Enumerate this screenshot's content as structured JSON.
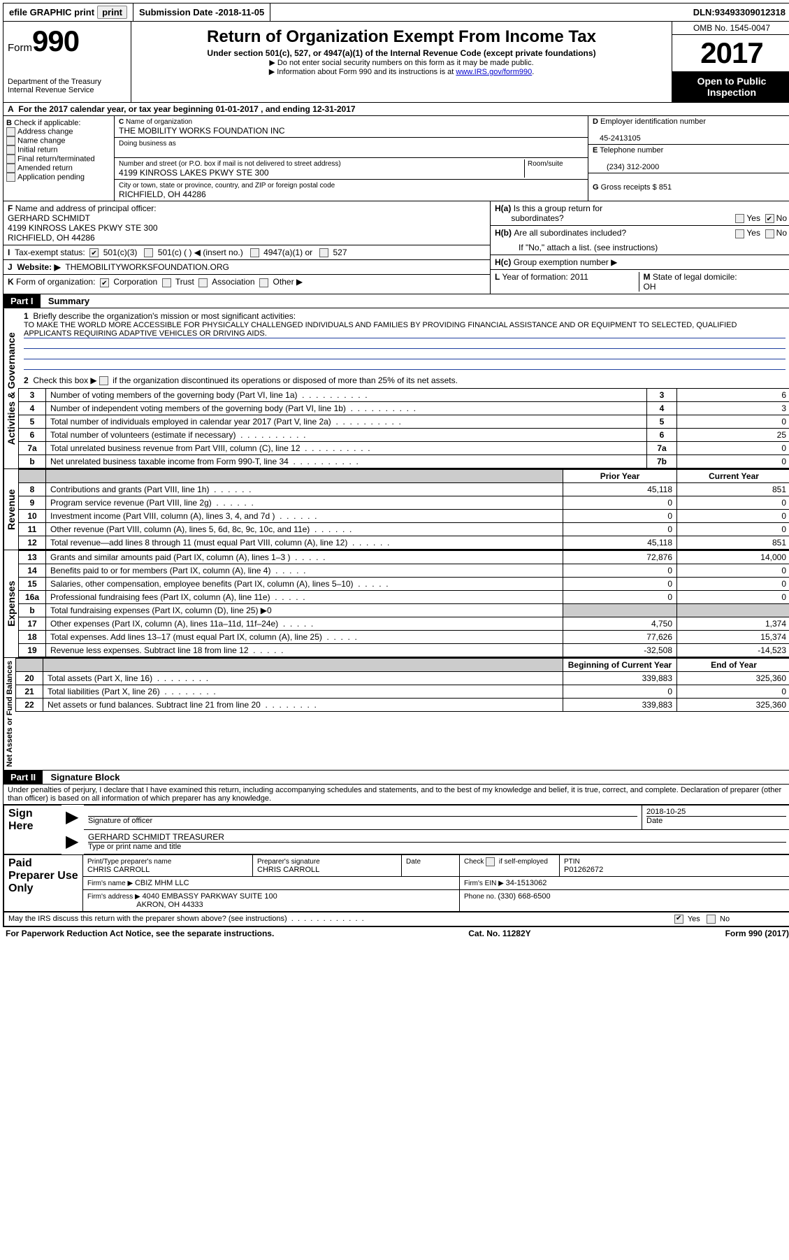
{
  "topbar": {
    "efile": "efile GRAPHIC print",
    "sub_label": "Submission Date - ",
    "sub_date": "2018-11-05",
    "dln_label": "DLN: ",
    "dln": "93493309012318"
  },
  "header": {
    "form_word": "Form",
    "form_num": "990",
    "dept1": "Department of the Treasury",
    "dept2": "Internal Revenue Service",
    "title": "Return of Organization Exempt From Income Tax",
    "subtitle": "Under section 501(c), 527, or 4947(a)(1) of the Internal Revenue Code (except private foundations)",
    "note1": "Do not enter social security numbers on this form as it may be made public.",
    "note2_a": "Information about Form 990 and its instructions is at ",
    "note2_link": "www.IRS.gov/form990",
    "omb": "OMB No. 1545-0047",
    "year": "2017",
    "open1": "Open to Public",
    "open2": "Inspection"
  },
  "line_a": "For the 2017 calendar year, or tax year beginning 01-01-2017   , and ending 12-31-2017",
  "col_b": {
    "title": "Check if applicable:",
    "items": [
      "Address change",
      "Name change",
      "Initial return",
      "Final return/terminated",
      "Amended return",
      "Application pending"
    ]
  },
  "col_c": {
    "c_label": "Name of organization",
    "c_val": "THE MOBILITY WORKS FOUNDATION INC",
    "dba_label": "Doing business as",
    "addr_label": "Number and street (or P.O. box if mail is not delivered to street address)",
    "room_label": "Room/suite",
    "addr_val": "4199 KINROSS LAKES PKWY STE 300",
    "city_label": "City or town, state or province, country, and ZIP or foreign postal code",
    "city_val": "RICHFIELD, OH  44286"
  },
  "col_d": {
    "d_label": "Employer identification number",
    "d_val": "45-2413105",
    "e_label": "Telephone number",
    "e_val": "(234) 312-2000",
    "g_label": "Gross receipts $ ",
    "g_val": "851"
  },
  "fg": {
    "f_label": "Name and address of principal officer:",
    "f_name": "GERHARD SCHMIDT",
    "f_addr1": "4199 KINROSS LAKES PKWY STE 300",
    "f_addr2": "RICHFIELD, OH  44286",
    "i_label": "Tax-exempt status:",
    "i_501c3": "501(c)(3)",
    "i_501c": "501(c) (   ) ◀ (insert no.)",
    "i_4947": "4947(a)(1) or",
    "i_527": "527",
    "j_label": "Website: ▶",
    "j_val": "THEMOBILITYWORKSFOUNDATION.ORG",
    "k_label": "Form of organization:",
    "k_corp": "Corporation",
    "k_trust": "Trust",
    "k_assoc": "Association",
    "k_other": "Other ▶"
  },
  "h": {
    "ha": "Is this a group return for",
    "ha2": "subordinates?",
    "hb": "Are all subordinates included?",
    "hnote": "If \"No,\" attach a list. (see instructions)",
    "hc": "Group exemption number ▶",
    "yes": "Yes",
    "no": "No",
    "l_label": "Year of formation: ",
    "l_val": "2011",
    "m_label": "State of legal domicile:",
    "m_val": "OH"
  },
  "part1": {
    "part": "Part I",
    "title": "Summary",
    "line1": "Briefly describe the organization's mission or most significant activities:",
    "mission": "TO MAKE THE WORLD MORE ACCESSIBLE FOR PHYSICALLY CHALLENGED INDIVIDUALS AND FAMILIES BY PROVIDING FINANCIAL ASSISTANCE AND OR EQUIPMENT TO SELECTED, QUALIFIED APPLICANTS REQUIRING ADAPTIVE VEHICLES OR DRIVING AIDS.",
    "line2": "Check this box ▶      if the organization discontinued its operations or disposed of more than 25% of its net assets.",
    "vlabel1": "Activities & Governance",
    "vlabel2": "Revenue",
    "vlabel3": "Expenses",
    "vlabel4": "Net Assets or Fund Balances",
    "rows_gov": [
      {
        "n": "3",
        "d": "Number of voting members of the governing body (Part VI, line 1a)",
        "b": "3",
        "v": "6"
      },
      {
        "n": "4",
        "d": "Number of independent voting members of the governing body (Part VI, line 1b)",
        "b": "4",
        "v": "3"
      },
      {
        "n": "5",
        "d": "Total number of individuals employed in calendar year 2017 (Part V, line 2a)",
        "b": "5",
        "v": "0"
      },
      {
        "n": "6",
        "d": "Total number of volunteers (estimate if necessary)",
        "b": "6",
        "v": "25"
      },
      {
        "n": "7a",
        "d": "Total unrelated business revenue from Part VIII, column (C), line 12",
        "b": "7a",
        "v": "0"
      },
      {
        "n": "b",
        "d": "Net unrelated business taxable income from Form 990-T, line 34",
        "b": "7b",
        "v": "0"
      }
    ],
    "prior": "Prior Year",
    "current": "Current Year",
    "rows_rev": [
      {
        "n": "8",
        "d": "Contributions and grants (Part VIII, line 1h)",
        "p": "45,118",
        "c": "851"
      },
      {
        "n": "9",
        "d": "Program service revenue (Part VIII, line 2g)",
        "p": "0",
        "c": "0"
      },
      {
        "n": "10",
        "d": "Investment income (Part VIII, column (A), lines 3, 4, and 7d )",
        "p": "0",
        "c": "0"
      },
      {
        "n": "11",
        "d": "Other revenue (Part VIII, column (A), lines 5, 6d, 8c, 9c, 10c, and 11e)",
        "p": "0",
        "c": "0"
      },
      {
        "n": "12",
        "d": "Total revenue—add lines 8 through 11 (must equal Part VIII, column (A), line 12)",
        "p": "45,118",
        "c": "851"
      }
    ],
    "rows_exp": [
      {
        "n": "13",
        "d": "Grants and similar amounts paid (Part IX, column (A), lines 1–3 )",
        "p": "72,876",
        "c": "14,000"
      },
      {
        "n": "14",
        "d": "Benefits paid to or for members (Part IX, column (A), line 4)",
        "p": "0",
        "c": "0"
      },
      {
        "n": "15",
        "d": "Salaries, other compensation, employee benefits (Part IX, column (A), lines 5–10)",
        "p": "0",
        "c": "0"
      },
      {
        "n": "16a",
        "d": "Professional fundraising fees (Part IX, column (A), line 11e)",
        "p": "0",
        "c": "0"
      },
      {
        "n": "b",
        "d": "Total fundraising expenses (Part IX, column (D), line 25) ▶0",
        "p": "",
        "c": "",
        "grey": true
      },
      {
        "n": "17",
        "d": "Other expenses (Part IX, column (A), lines 11a–11d, 11f–24e)",
        "p": "4,750",
        "c": "1,374"
      },
      {
        "n": "18",
        "d": "Total expenses. Add lines 13–17 (must equal Part IX, column (A), line 25)",
        "p": "77,626",
        "c": "15,374"
      },
      {
        "n": "19",
        "d": "Revenue less expenses. Subtract line 18 from line 12",
        "p": "-32,508",
        "c": "-14,523"
      }
    ],
    "begin": "Beginning of Current Year",
    "endyr": "End of Year",
    "rows_net": [
      {
        "n": "20",
        "d": "Total assets (Part X, line 16)",
        "p": "339,883",
        "c": "325,360"
      },
      {
        "n": "21",
        "d": "Total liabilities (Part X, line 26)",
        "p": "0",
        "c": "0"
      },
      {
        "n": "22",
        "d": "Net assets or fund balances. Subtract line 21 from line 20",
        "p": "339,883",
        "c": "325,360"
      }
    ]
  },
  "part2": {
    "part": "Part II",
    "title": "Signature Block",
    "decl": "Under penalties of perjury, I declare that I have examined this return, including accompanying schedules and statements, and to the best of my knowledge and belief, it is true, correct, and complete. Declaration of preparer (other than officer) is based on all information of which preparer has any knowledge.",
    "sign_here": "Sign Here",
    "sig_officer": "Signature of officer",
    "date": "Date",
    "sig_date": "2018-10-25",
    "name_title": "GERHARD SCHMIDT TREASURER",
    "type_name": "Type or print name and title",
    "paid": "Paid Preparer Use Only",
    "prep_name_label": "Print/Type preparer's name",
    "prep_name": "CHRIS CARROLL",
    "prep_sig_label": "Preparer's signature",
    "prep_sig": "CHRIS CARROLL",
    "date_label": "Date",
    "check_self": "Check       if self-employed",
    "ptin_label": "PTIN",
    "ptin": "P01262672",
    "firm_name_label": "Firm's name    ▶ ",
    "firm_name": "CBIZ MHM LLC",
    "firm_ein_label": "Firm's EIN ▶ ",
    "firm_ein": "34-1513062",
    "firm_addr_label": "Firm's address ▶ ",
    "firm_addr1": "4040 EMBASSY PARKWAY SUITE 100",
    "firm_addr2": "AKRON, OH  44333",
    "phone_label": "Phone no. ",
    "phone": "(330) 668-6500",
    "discuss": "May the IRS discuss this return with the preparer shown above? (see instructions)",
    "yes": "Yes",
    "no": "No"
  },
  "footer": {
    "left": "For Paperwork Reduction Act Notice, see the separate instructions.",
    "mid": "Cat. No. 11282Y",
    "right": "Form 990 (2017)"
  }
}
